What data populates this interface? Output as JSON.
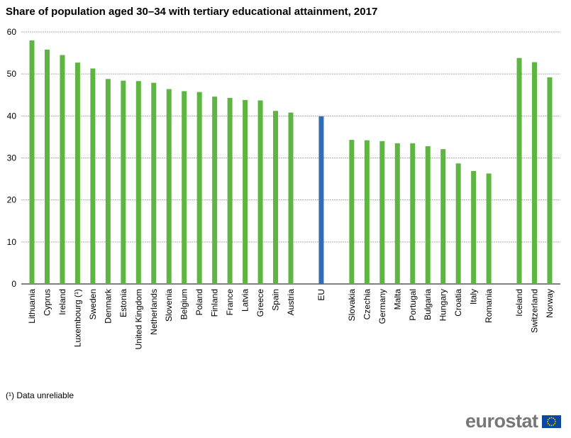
{
  "chart_data": {
    "type": "bar",
    "title": "Share of population aged 30–34 with tertiary educational attainment, 2017",
    "xlabel": "",
    "ylabel": "",
    "ylim": [
      0,
      60
    ],
    "yticks": [
      0,
      10,
      20,
      30,
      40,
      50,
      60
    ],
    "grid": true,
    "categories": [
      "Lithuania",
      "Cyprus",
      "Ireland",
      "Luxembourg (¹)",
      "Sweden",
      "Denmark",
      "Estonia",
      "United Kingdom",
      "Netherlands",
      "Slovenia",
      "Belgium",
      "Poland",
      "Finland",
      "France",
      "Latvia",
      "Greece",
      "Spain",
      "Austria",
      "",
      "EU",
      "",
      "Slovakia",
      "Czechia",
      "Germany",
      "Malta",
      "Portugal",
      "Bulgaria",
      "Hungary",
      "Croatia",
      "Italy",
      "Romania",
      "",
      "Iceland",
      "Switzerland",
      "Norway"
    ],
    "values": [
      58.0,
      55.8,
      54.5,
      52.7,
      51.3,
      48.8,
      48.4,
      48.3,
      47.9,
      46.4,
      45.9,
      45.7,
      44.6,
      44.3,
      43.8,
      43.7,
      41.2,
      40.8,
      null,
      39.9,
      null,
      34.3,
      34.2,
      34.0,
      33.5,
      33.5,
      32.8,
      32.1,
      28.7,
      26.9,
      26.3,
      null,
      53.8,
      52.8,
      49.2
    ],
    "colors": {
      "default": "#5fb541",
      "highlight": "#2f6db5"
    },
    "highlight": [
      "EU"
    ]
  },
  "footnote": "(¹) Data unreliable",
  "logo_text": "eurostat"
}
